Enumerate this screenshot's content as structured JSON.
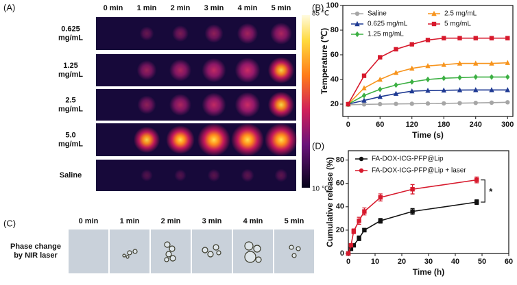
{
  "panel_labels": [
    "(A)",
    "(B)",
    "(C)",
    "(D)"
  ],
  "thermal": {
    "columns": [
      "0 min",
      "1 min",
      "2 min",
      "3 min",
      "4 min",
      "5 min"
    ],
    "row_labels": [
      [
        "0.625",
        "mg/mL"
      ],
      [
        "1.25",
        "mg/mL"
      ],
      [
        "2.5",
        "mg/mL"
      ],
      [
        "5.0",
        "mg/mL"
      ],
      [
        "Saline"
      ]
    ],
    "colorbar_max": "85 ℃",
    "colorbar_min": "10 ℃"
  },
  "phase": {
    "columns": [
      "0 min",
      "1 min",
      "2 min",
      "3 min",
      "4 min",
      "5 min"
    ],
    "label": [
      "Phase change",
      "by NIR laser"
    ]
  },
  "chart_data": [
    {
      "type": "line",
      "x_label": "Time (s)",
      "y_label": "Temperature (℃)",
      "x": [
        0,
        30,
        60,
        90,
        120,
        150,
        180,
        210,
        240,
        270,
        300
      ],
      "series": [
        {
          "name": "Saline",
          "color": "#a6a6a6",
          "marker": "circle",
          "values": [
            19.5,
            19.8,
            20,
            20.2,
            20.3,
            20.5,
            20.6,
            20.8,
            21,
            21.2,
            21.5
          ]
        },
        {
          "name": "0.625 mg/mL",
          "color": "#1f3a93",
          "marker": "triangle",
          "values": [
            20,
            23,
            26,
            28.5,
            30.5,
            31,
            31.2,
            31.4,
            31.5,
            31.5,
            31.5
          ]
        },
        {
          "name": "1.25 mg/mL",
          "color": "#3cb043",
          "marker": "diamond",
          "values": [
            20,
            27,
            32,
            35.5,
            38,
            40,
            41,
            41.5,
            42,
            42,
            42
          ]
        },
        {
          "name": "2.5 mg/mL",
          "color": "#f7941d",
          "marker": "triangle",
          "values": [
            20,
            33,
            40,
            45.5,
            49,
            51,
            52,
            53,
            53,
            53,
            53.5
          ]
        },
        {
          "name": "5 mg/mL",
          "color": "#d7192c",
          "marker": "square",
          "values": [
            20,
            43,
            58,
            64.5,
            68.5,
            72,
            73.5,
            73.5,
            73.5,
            73.5,
            73.5
          ]
        }
      ],
      "xlim": [
        -10,
        310
      ],
      "ylim": [
        10,
        100
      ],
      "xticks": [
        0,
        60,
        120,
        180,
        240,
        300
      ],
      "yticks": [
        20,
        40,
        60,
        80,
        100
      ]
    },
    {
      "type": "errorline",
      "x_label": "Time (h)",
      "y_label": "Cumulative release (%)",
      "x": [
        0,
        1,
        2,
        4,
        6,
        12,
        24,
        48
      ],
      "series": [
        {
          "name": "FA-DOX-ICG-PFP@Lip",
          "color": "#111111",
          "values": [
            0,
            4,
            7,
            13,
            20,
            28,
            36,
            44
          ],
          "errors": [
            0,
            1,
            1,
            2,
            1.5,
            2,
            2.5,
            2
          ]
        },
        {
          "name": "FA-DOX-ICG-PFP@Lip + laser",
          "color": "#d7192c",
          "values": [
            0,
            7,
            19,
            28,
            36,
            48,
            55,
            63
          ],
          "errors": [
            0,
            1,
            2,
            3,
            3,
            3,
            4,
            2.5
          ]
        }
      ],
      "annotation": "*",
      "xlim": [
        0,
        60
      ],
      "ylim": [
        0,
        88
      ],
      "xticks": [
        0,
        10,
        20,
        30,
        40,
        50,
        60
      ],
      "yticks": [
        0,
        20,
        40,
        60,
        80
      ]
    }
  ]
}
